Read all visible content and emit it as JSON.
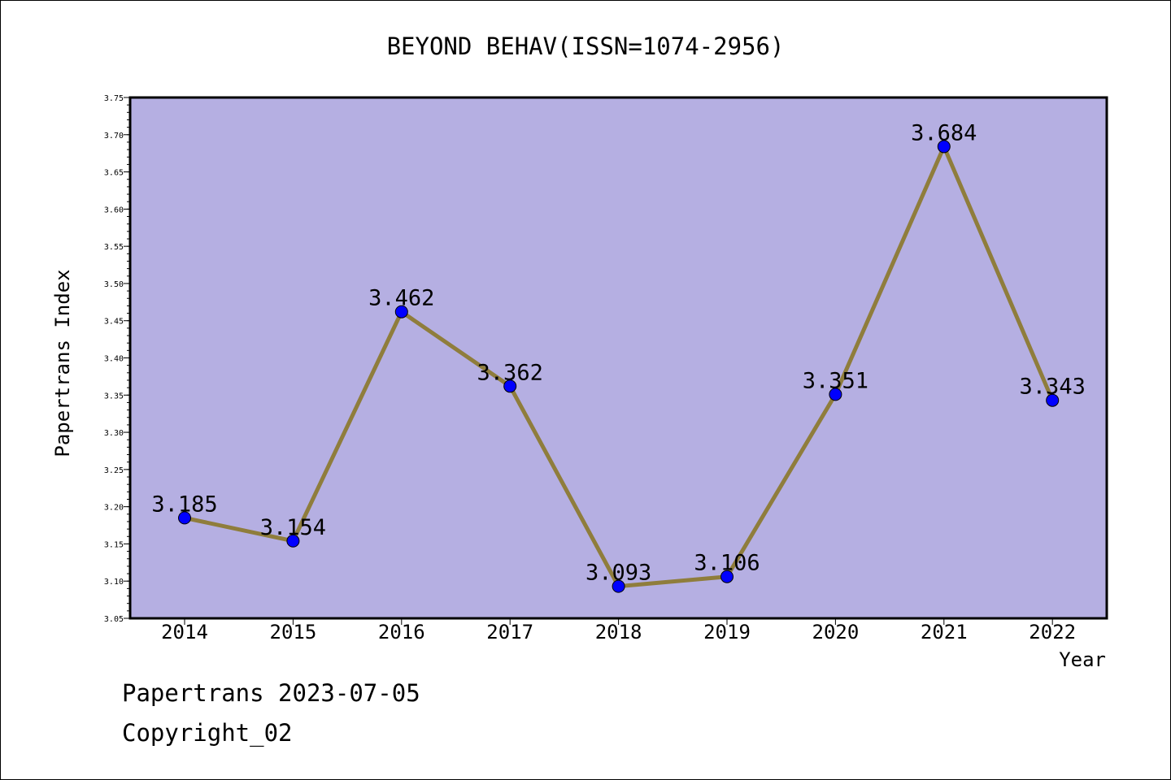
{
  "chart_data": {
    "type": "line",
    "title": "BEYOND BEHAV(ISSN=1074-2956)",
    "xlabel": "Year",
    "ylabel": "Papertrans Index",
    "categories": [
      "2014",
      "2015",
      "2016",
      "2017",
      "2018",
      "2019",
      "2020",
      "2021",
      "2022"
    ],
    "values": [
      3.185,
      3.154,
      3.462,
      3.362,
      3.093,
      3.106,
      3.351,
      3.684,
      3.343
    ],
    "data_labels": [
      "3.185",
      "3.154",
      "3.462",
      "3.362",
      "3.093",
      "3.106",
      "3.351",
      "3.684",
      "3.343"
    ],
    "ylim": [
      3.05,
      3.75
    ],
    "yticks": [
      "3.05",
      "3.10",
      "3.15",
      "3.20",
      "3.25",
      "3.30",
      "3.35",
      "3.40",
      "3.45",
      "3.50",
      "3.55",
      "3.60",
      "3.65",
      "3.70",
      "3.75"
    ],
    "grid": false,
    "legend": "none",
    "colors": {
      "plot_background": "#b5afe2",
      "line": "#8f7d3c",
      "marker": "#0000ff"
    }
  },
  "footer": {
    "line1": "Papertrans 2023-07-05",
    "line2": "Copyright_02"
  }
}
